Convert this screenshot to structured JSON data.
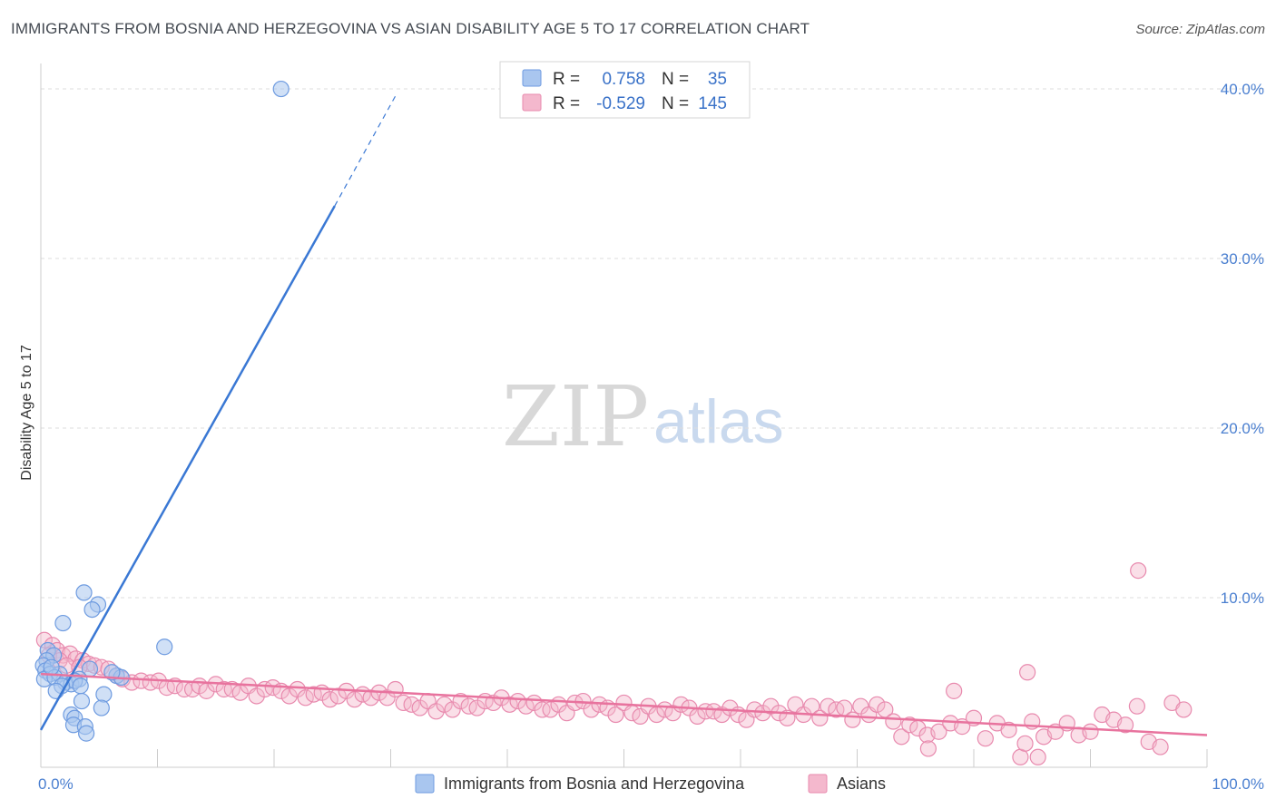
{
  "title": "IMMIGRANTS FROM BOSNIA AND HERZEGOVINA VS ASIAN DISABILITY AGE 5 TO 17 CORRELATION CHART",
  "source": "Source: ZipAtlas.com",
  "watermark": {
    "zip": "ZIP",
    "atlas": "atlas"
  },
  "legend": {
    "rows": [
      {
        "r_label": "R =",
        "r_value": "0.758",
        "n_label": "N =",
        "n_value": "35"
      },
      {
        "r_label": "R =",
        "r_value": "-0.529",
        "n_label": "N =",
        "n_value": "145"
      }
    ]
  },
  "colors": {
    "blue": "#3a78d4",
    "blue_fill": "#a9c6ef",
    "pink": "#e8739e",
    "pink_fill": "#f4b8cd",
    "tick": "#4a7fd0",
    "grid": "#dddddd"
  },
  "chart_data": {
    "type": "scatter",
    "title": "IMMIGRANTS FROM BOSNIA AND HERZEGOVINA VS ASIAN DISABILITY AGE 5 TO 17 CORRELATION CHART",
    "xlabel": "",
    "ylabel": "Disability Age 5 to 17",
    "xlim": [
      0,
      100
    ],
    "ylim": [
      0,
      41.5
    ],
    "x_tick_labels": [
      {
        "value": 0,
        "label": "0.0%"
      },
      {
        "value": 100,
        "label": "100.0%"
      }
    ],
    "x_minor_ticks": [
      0,
      10,
      20,
      30,
      40,
      50,
      60,
      70,
      80,
      90,
      100
    ],
    "y_tick_labels": [
      {
        "value": 10,
        "label": "10.0%"
      },
      {
        "value": 20,
        "label": "20.0%"
      },
      {
        "value": 30,
        "label": "30.0%"
      },
      {
        "value": 40,
        "label": "40.0%"
      }
    ],
    "series": [
      {
        "name": "Immigrants from Bosnia and Herzegovina",
        "color": "blue",
        "r": 0.758,
        "n": 35,
        "trend": {
          "x0": 0,
          "y0": 2.2,
          "x1": 25.2,
          "y1": 33.1,
          "dash_to_x": 30.5,
          "dash_to_y": 39.7
        },
        "points": [
          [
            20.6,
            40.0
          ],
          [
            3.7,
            10.3
          ],
          [
            4.9,
            9.6
          ],
          [
            4.4,
            9.3
          ],
          [
            1.9,
            8.5
          ],
          [
            10.6,
            7.1
          ],
          [
            0.6,
            6.9
          ],
          [
            1.1,
            6.6
          ],
          [
            0.5,
            6.3
          ],
          [
            0.2,
            6.0
          ],
          [
            0.4,
            5.7
          ],
          [
            0.8,
            5.5
          ],
          [
            1.6,
            5.5
          ],
          [
            4.2,
            5.8
          ],
          [
            6.5,
            5.4
          ],
          [
            6.9,
            5.3
          ],
          [
            0.3,
            5.2
          ],
          [
            1.2,
            5.3
          ],
          [
            2.1,
            5.0
          ],
          [
            2.6,
            4.9
          ],
          [
            3.3,
            5.2
          ],
          [
            2.9,
            5.1
          ],
          [
            3.4,
            4.8
          ],
          [
            1.8,
            4.8
          ],
          [
            1.3,
            4.5
          ],
          [
            5.4,
            4.3
          ],
          [
            3.5,
            3.9
          ],
          [
            6.1,
            5.6
          ],
          [
            5.2,
            3.5
          ],
          [
            2.6,
            3.1
          ],
          [
            2.9,
            2.9
          ],
          [
            2.8,
            2.5
          ],
          [
            3.8,
            2.4
          ],
          [
            3.9,
            2.0
          ],
          [
            0.9,
            5.9
          ]
        ]
      },
      {
        "name": "Asians",
        "color": "pink",
        "r": -0.529,
        "n": 145,
        "trend": {
          "x0": 0,
          "y0": 5.5,
          "x1": 100,
          "y1": 1.9
        },
        "points": [
          [
            0.3,
            7.5
          ],
          [
            1.0,
            7.2
          ],
          [
            1.4,
            6.9
          ],
          [
            1.9,
            6.6
          ],
          [
            2.5,
            6.7
          ],
          [
            3.0,
            6.4
          ],
          [
            3.6,
            6.3
          ],
          [
            4.1,
            6.1
          ],
          [
            0.7,
            6.6
          ],
          [
            1.6,
            6.3
          ],
          [
            2.2,
            6.0
          ],
          [
            4.6,
            6.0
          ],
          [
            5.2,
            5.9
          ],
          [
            5.8,
            5.8
          ],
          [
            3.3,
            5.9
          ],
          [
            6.5,
            5.4
          ],
          [
            7.0,
            5.2
          ],
          [
            7.8,
            5.0
          ],
          [
            8.6,
            5.1
          ],
          [
            9.4,
            5.0
          ],
          [
            10.1,
            5.1
          ],
          [
            10.8,
            4.7
          ],
          [
            11.5,
            4.8
          ],
          [
            12.3,
            4.6
          ],
          [
            13.0,
            4.6
          ],
          [
            13.6,
            4.8
          ],
          [
            14.2,
            4.5
          ],
          [
            15.0,
            4.9
          ],
          [
            15.7,
            4.6
          ],
          [
            16.4,
            4.6
          ],
          [
            17.1,
            4.4
          ],
          [
            17.8,
            4.8
          ],
          [
            18.5,
            4.2
          ],
          [
            19.2,
            4.6
          ],
          [
            19.9,
            4.7
          ],
          [
            20.6,
            4.5
          ],
          [
            21.3,
            4.2
          ],
          [
            22.0,
            4.6
          ],
          [
            22.7,
            4.1
          ],
          [
            23.4,
            4.3
          ],
          [
            24.1,
            4.4
          ],
          [
            24.8,
            4.0
          ],
          [
            25.5,
            4.2
          ],
          [
            26.2,
            4.5
          ],
          [
            26.9,
            4.0
          ],
          [
            27.6,
            4.3
          ],
          [
            28.3,
            4.1
          ],
          [
            29.0,
            4.4
          ],
          [
            29.7,
            4.1
          ],
          [
            30.4,
            4.6
          ],
          [
            31.1,
            3.8
          ],
          [
            31.8,
            3.7
          ],
          [
            32.5,
            3.5
          ],
          [
            33.2,
            3.9
          ],
          [
            33.9,
            3.3
          ],
          [
            34.6,
            3.7
          ],
          [
            35.3,
            3.4
          ],
          [
            36.0,
            3.9
          ],
          [
            36.7,
            3.6
          ],
          [
            37.4,
            3.5
          ],
          [
            38.1,
            3.9
          ],
          [
            38.8,
            3.8
          ],
          [
            39.5,
            4.1
          ],
          [
            40.2,
            3.7
          ],
          [
            40.9,
            3.9
          ],
          [
            41.6,
            3.6
          ],
          [
            42.3,
            3.8
          ],
          [
            43.0,
            3.4
          ],
          [
            43.7,
            3.4
          ],
          [
            44.4,
            3.7
          ],
          [
            45.1,
            3.2
          ],
          [
            45.8,
            3.8
          ],
          [
            46.5,
            3.9
          ],
          [
            47.2,
            3.4
          ],
          [
            47.9,
            3.7
          ],
          [
            48.6,
            3.5
          ],
          [
            49.3,
            3.1
          ],
          [
            50.0,
            3.8
          ],
          [
            50.7,
            3.2
          ],
          [
            51.4,
            3.0
          ],
          [
            52.1,
            3.6
          ],
          [
            52.8,
            3.1
          ],
          [
            53.5,
            3.4
          ],
          [
            54.2,
            3.2
          ],
          [
            54.9,
            3.7
          ],
          [
            55.6,
            3.5
          ],
          [
            56.3,
            3.0
          ],
          [
            57.0,
            3.3
          ],
          [
            57.7,
            3.3
          ],
          [
            58.4,
            3.1
          ],
          [
            59.1,
            3.5
          ],
          [
            59.8,
            3.1
          ],
          [
            60.5,
            2.8
          ],
          [
            61.2,
            3.4
          ],
          [
            61.9,
            3.2
          ],
          [
            62.6,
            3.6
          ],
          [
            63.3,
            3.2
          ],
          [
            64.0,
            2.9
          ],
          [
            64.7,
            3.7
          ],
          [
            65.4,
            3.1
          ],
          [
            66.1,
            3.6
          ],
          [
            66.8,
            2.9
          ],
          [
            67.5,
            3.6
          ],
          [
            68.2,
            3.4
          ],
          [
            68.9,
            3.5
          ],
          [
            69.6,
            2.8
          ],
          [
            70.3,
            3.6
          ],
          [
            71.0,
            3.1
          ],
          [
            71.7,
            3.7
          ],
          [
            72.4,
            3.4
          ],
          [
            73.1,
            2.7
          ],
          [
            73.8,
            1.8
          ],
          [
            74.5,
            2.5
          ],
          [
            75.2,
            2.3
          ],
          [
            76.0,
            1.9
          ],
          [
            77.0,
            2.1
          ],
          [
            78.0,
            2.6
          ],
          [
            79.0,
            2.4
          ],
          [
            80.0,
            2.9
          ],
          [
            81.0,
            1.7
          ],
          [
            82.0,
            2.6
          ],
          [
            83.0,
            2.2
          ],
          [
            84.0,
            0.6
          ],
          [
            85.0,
            2.7
          ],
          [
            86.0,
            1.8
          ],
          [
            87.0,
            2.1
          ],
          [
            88.0,
            2.6
          ],
          [
            89.0,
            1.9
          ],
          [
            90.0,
            2.1
          ],
          [
            91.0,
            3.1
          ],
          [
            92.0,
            2.8
          ],
          [
            93.0,
            2.5
          ],
          [
            94.0,
            3.6
          ],
          [
            95.0,
            1.5
          ],
          [
            96.0,
            1.2
          ],
          [
            97.0,
            3.8
          ],
          [
            98.0,
            3.4
          ],
          [
            78.3,
            4.5
          ],
          [
            84.6,
            5.6
          ],
          [
            94.1,
            11.6
          ],
          [
            85.5,
            0.6
          ],
          [
            76.1,
            1.1
          ],
          [
            84.4,
            1.4
          ]
        ]
      }
    ]
  },
  "bottom_legend": [
    {
      "label": "Immigrants from Bosnia and Herzegovina",
      "color": "blue"
    },
    {
      "label": "Asians",
      "color": "pink"
    }
  ]
}
